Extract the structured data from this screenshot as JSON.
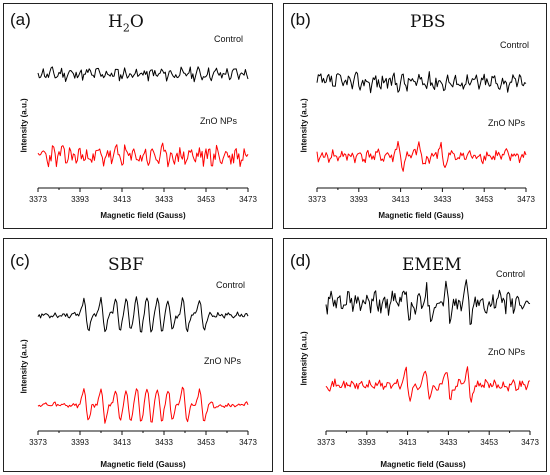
{
  "chart_data": [
    {
      "type": "line",
      "panel_label": "(a)",
      "title_main": "H",
      "title_sub": "2",
      "title_tail": "O",
      "xlabel": "Magnetic field (Gauss)",
      "ylabel": "Intensity (a.u.)",
      "xlim": [
        3373,
        3473
      ],
      "xticks": [
        "3373",
        "3393",
        "3413",
        "3433",
        "3453",
        "3473"
      ],
      "series": [
        {
          "name": "Control",
          "color": "#000000",
          "amplitude": 0.55,
          "seed": 11,
          "peaks": []
        },
        {
          "name": "ZnO NPs",
          "color": "#ff0000",
          "amplitude": 0.9,
          "seed": 23,
          "peaks": []
        }
      ]
    },
    {
      "type": "line",
      "panel_label": "(b)",
      "title_main": "PBS",
      "title_sub": "",
      "title_tail": "",
      "xlabel": "Magnetic field (Gauss)",
      "ylabel": "Intensity (a.u.)",
      "xlim": [
        3373,
        3473
      ],
      "xticks": [
        "3373",
        "3393",
        "3413",
        "3433",
        "3453",
        "3473"
      ],
      "series": [
        {
          "name": "Control",
          "color": "#000000",
          "amplitude": 0.75,
          "seed": 37,
          "peaks": []
        },
        {
          "name": "ZnO NPs",
          "color": "#ff0000",
          "amplitude": 0.55,
          "seed": 41,
          "peaks": [
            3413,
            3423,
            3433
          ]
        }
      ]
    },
    {
      "type": "line",
      "panel_label": "(c)",
      "title_main": "SBF",
      "title_sub": "",
      "title_tail": "",
      "xlabel": "Magnetic field (Gauss)",
      "ylabel": "Intensity (a.u.)",
      "xlim": [
        3373,
        3473
      ],
      "xticks": [
        "3373",
        "3393",
        "3413",
        "3433",
        "3453",
        "3473"
      ],
      "series": [
        {
          "name": "Control",
          "color": "#000000",
          "amplitude": 0.2,
          "seed": 53,
          "peaks": [
            3396,
            3404,
            3411,
            3416,
            3421,
            3426,
            3431,
            3436,
            3443,
            3451
          ]
        },
        {
          "name": "ZnO NPs",
          "color": "#ff0000",
          "amplitude": 0.2,
          "seed": 59,
          "peaks": [
            3396,
            3404,
            3411,
            3416,
            3421,
            3426,
            3431,
            3436,
            3443,
            3451
          ]
        }
      ]
    },
    {
      "type": "line",
      "panel_label": "(d)",
      "title_main": "EMEM",
      "title_sub": "",
      "title_tail": "",
      "xlabel": "Magnetic field (Gauss)",
      "ylabel": "Intensity (a.u.)",
      "xlim": [
        3373,
        3473
      ],
      "xticks": [
        "3373",
        "3393",
        "3413",
        "3433",
        "3453",
        "3473"
      ],
      "series": [
        {
          "name": "Control",
          "color": "#000000",
          "amplitude": 0.75,
          "seed": 61,
          "peaks": [
            3413,
            3423,
            3433,
            3443
          ]
        },
        {
          "name": "ZnO NPs",
          "color": "#ff0000",
          "amplitude": 0.35,
          "seed": 71,
          "peaks": [
            3413,
            3423,
            3433,
            3443
          ]
        }
      ]
    }
  ]
}
